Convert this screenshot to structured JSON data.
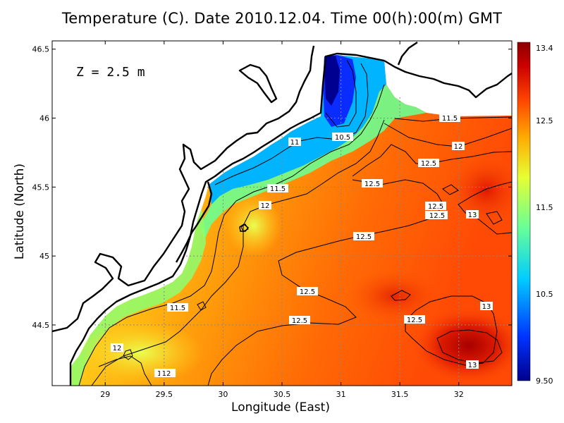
{
  "title": "Temperature (C). Date 2010.12.04. Time 00(h):00(m) GMT",
  "depth_label": "Z = 2.5 m",
  "axes": {
    "xlabel": "Longitude (East)",
    "ylabel": "Latitude (North)",
    "xlim": [
      28.55,
      32.45
    ],
    "ylim": [
      44.06,
      46.56
    ],
    "xticks": [
      "29",
      "29.5",
      "30",
      "30.5",
      "31",
      "31.5",
      "32"
    ],
    "yticks": [
      "44.5",
      "45",
      "45.5",
      "46",
      "46.5"
    ],
    "grid": true
  },
  "colorbar": {
    "min": 9.5,
    "max": 13.4,
    "ticks": [
      "13.4",
      "12.5",
      "11.5",
      "10.5",
      "9.50"
    ],
    "colormap": [
      "#00008c",
      "#0033ff",
      "#00ccff",
      "#66ff99",
      "#e6ff33",
      "#ffaa00",
      "#ff4400",
      "#cc0000",
      "#8c0000"
    ]
  },
  "contour_labels": [
    "11.5",
    "12",
    "12.5",
    "12.5",
    "12.5",
    "11",
    "10.5",
    "11.5",
    "12",
    "12.5",
    "12.5",
    "12.5",
    "13",
    "12.5",
    "12.5",
    "11.5",
    "12.5",
    "12.5",
    "13",
    "12",
    "12",
    "13"
  ],
  "chart_data": {
    "type": "heatmap",
    "title": "Temperature (C). Date 2010.12.04. Time 00(h):00(m) GMT",
    "xlabel": "Longitude (East)",
    "ylabel": "Latitude (North)",
    "xlim": [
      28.55,
      32.45
    ],
    "ylim": [
      44.06,
      46.56
    ],
    "value_range": [
      9.5,
      13.4
    ],
    "contour_levels": [
      10.5,
      11,
      11.5,
      12,
      12.5,
      13
    ],
    "samples": [
      {
        "lon": 30.85,
        "lat": 46.3,
        "value": 9.6
      },
      {
        "lon": 30.6,
        "lat": 45.95,
        "value": 10.5
      },
      {
        "lon": 30.25,
        "lat": 45.8,
        "value": 10.9
      },
      {
        "lon": 29.9,
        "lat": 45.55,
        "value": 11.3
      },
      {
        "lon": 29.2,
        "lat": 44.6,
        "value": 11.9
      },
      {
        "lon": 29.5,
        "lat": 44.2,
        "value": 12.1
      },
      {
        "lon": 30.6,
        "lat": 44.8,
        "value": 12.4
      },
      {
        "lon": 31.2,
        "lat": 45.5,
        "value": 12.5
      },
      {
        "lon": 31.8,
        "lat": 45.9,
        "value": 12.3
      },
      {
        "lon": 32.2,
        "lat": 45.4,
        "value": 12.9
      },
      {
        "lon": 32.1,
        "lat": 44.3,
        "value": 13.3
      },
      {
        "lon": 31.5,
        "lat": 44.75,
        "value": 12.8
      }
    ]
  }
}
